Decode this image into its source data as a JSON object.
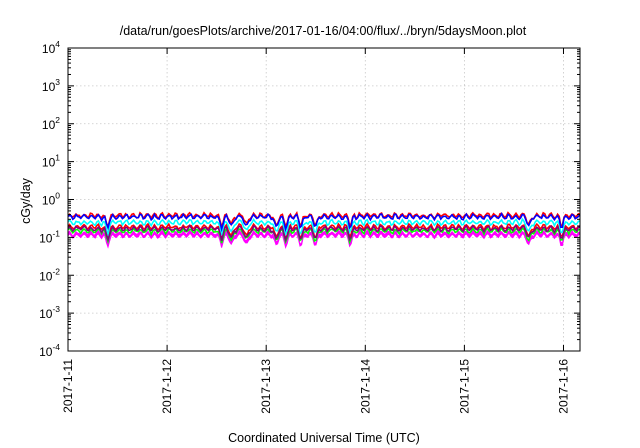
{
  "chart_data": {
    "type": "line",
    "title": "/data/run/goesPlots/archive/2017-01-16/04:00/flux/../bryn/5daysMoon.plot",
    "xlabel": "Coordinated Universal Time (UTC)",
    "ylabel": "cGy/day",
    "yscale": "log",
    "ylim_exp": [
      -4,
      4
    ],
    "y_ticks": [
      {
        "base": "10",
        "exp": "-4"
      },
      {
        "base": "10",
        "exp": "-3"
      },
      {
        "base": "10",
        "exp": "-2"
      },
      {
        "base": "10",
        "exp": "-1"
      },
      {
        "base": "10",
        "exp": "0"
      },
      {
        "base": "10",
        "exp": "1"
      },
      {
        "base": "10",
        "exp": "2"
      },
      {
        "base": "10",
        "exp": "3"
      },
      {
        "base": "10",
        "exp": "4"
      }
    ],
    "xlim": [
      "2017-01-11",
      "2017-01-16 04:00"
    ],
    "x_ticks": [
      "2017-1-11",
      "2017-1-12",
      "2017-1-13",
      "2017-1-14",
      "2017-1-15",
      "2017-1-16"
    ],
    "grid": true,
    "legend": "none",
    "series": [
      {
        "color": "#ff00ff",
        "fill_to_min": true,
        "base": 0.13,
        "dips": [
          [
            0.4,
            0.09
          ],
          [
            1.55,
            0.075
          ],
          [
            1.65,
            0.08
          ],
          [
            1.8,
            0.09
          ],
          [
            2.1,
            0.08
          ],
          [
            2.2,
            0.08
          ],
          [
            2.35,
            0.085
          ],
          [
            2.5,
            0.075
          ],
          [
            2.85,
            0.085
          ],
          [
            4.65,
            0.085
          ],
          [
            4.98,
            0.09
          ]
        ]
      },
      {
        "color": "#ff0000",
        "base": 0.19
      },
      {
        "color": "#00ffff",
        "base": 0.25
      },
      {
        "color": "#00ff00",
        "base": 0.15
      },
      {
        "color": "#800080",
        "base": 0.17
      },
      {
        "color": "#ff0000",
        "base": 0.38
      },
      {
        "color": "#0000ff",
        "base": 0.35
      }
    ]
  }
}
